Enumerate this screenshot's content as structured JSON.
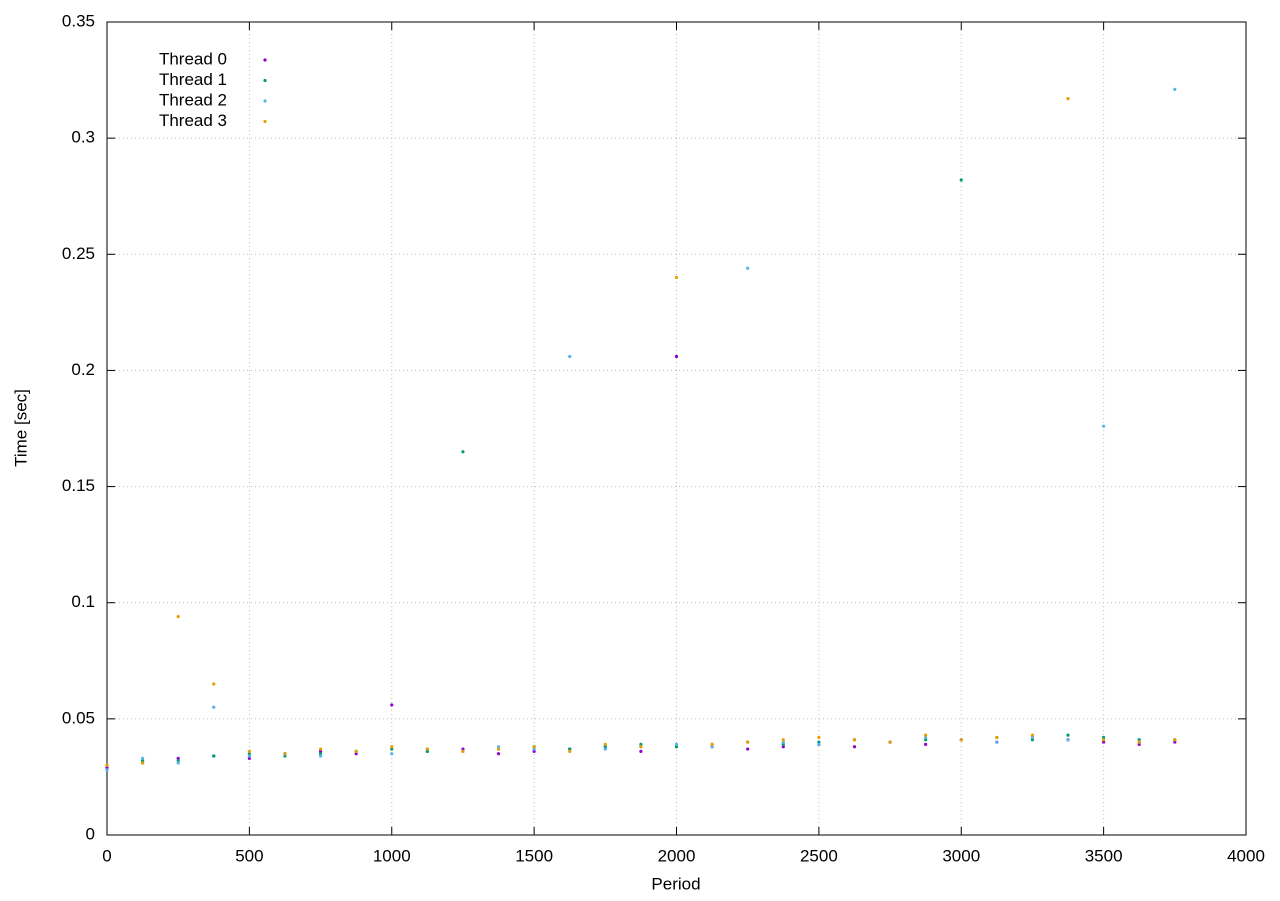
{
  "chart_data": {
    "type": "scatter",
    "xlabel": "Period",
    "ylabel": "Time [sec]",
    "x": [
      0,
      125,
      250,
      375,
      500,
      625,
      750,
      875,
      1000,
      1125,
      1250,
      1375,
      1500,
      1625,
      1750,
      1875,
      2000,
      2125,
      2250,
      2375,
      2500,
      2625,
      2750,
      2875,
      3000,
      3125,
      3250,
      3375,
      3500,
      3625,
      3750
    ],
    "series": [
      {
        "name": "Thread 0",
        "color": "#9400d3",
        "values": [
          0.029,
          0.031,
          0.033,
          0.034,
          0.033,
          0.035,
          0.036,
          0.035,
          0.056,
          0.036,
          0.037,
          0.035,
          0.036,
          0.037,
          0.038,
          0.036,
          0.206,
          0.038,
          0.037,
          0.038,
          0.039,
          0.038,
          0.04,
          0.039,
          0.041,
          0.04,
          0.042,
          0.041,
          0.04,
          0.039,
          0.04
        ]
      },
      {
        "name": "Thread 1",
        "color": "#009e73",
        "values": [
          0.03,
          0.032,
          0.032,
          0.034,
          0.035,
          0.034,
          0.035,
          0.036,
          0.037,
          0.036,
          0.165,
          0.037,
          0.038,
          0.037,
          0.038,
          0.039,
          0.038,
          0.039,
          0.04,
          0.039,
          0.04,
          0.041,
          0.04,
          0.041,
          0.282,
          0.042,
          0.041,
          0.043,
          0.042,
          0.041,
          0.041
        ]
      },
      {
        "name": "Thread 2",
        "color": "#56b4e9",
        "values": [
          0.028,
          0.033,
          0.031,
          0.055,
          0.034,
          0.035,
          0.034,
          0.036,
          0.035,
          0.037,
          0.036,
          0.038,
          0.037,
          0.206,
          0.037,
          0.038,
          0.039,
          0.038,
          0.244,
          0.04,
          0.039,
          0.041,
          0.04,
          0.042,
          0.041,
          0.04,
          0.042,
          0.041,
          0.176,
          0.04,
          0.321
        ]
      },
      {
        "name": "Thread 3",
        "color": "#e69f00",
        "values": [
          0.03,
          0.031,
          0.094,
          0.065,
          0.036,
          0.035,
          0.037,
          0.036,
          0.038,
          0.037,
          0.036,
          0.037,
          0.038,
          0.036,
          0.039,
          0.038,
          0.24,
          0.039,
          0.04,
          0.041,
          0.042,
          0.041,
          0.04,
          0.043,
          0.041,
          0.042,
          0.043,
          0.317,
          0.041,
          0.04,
          0.041
        ]
      }
    ],
    "xlim": [
      0,
      4000
    ],
    "xticks": [
      0,
      500,
      1000,
      1500,
      2000,
      2500,
      3000,
      3500,
      4000
    ],
    "ylim": [
      0,
      0.35
    ],
    "yticks": [
      0,
      0.05,
      0.1,
      0.15,
      0.2,
      0.25,
      0.3,
      0.35
    ],
    "grid": true,
    "legend": "top-left"
  }
}
